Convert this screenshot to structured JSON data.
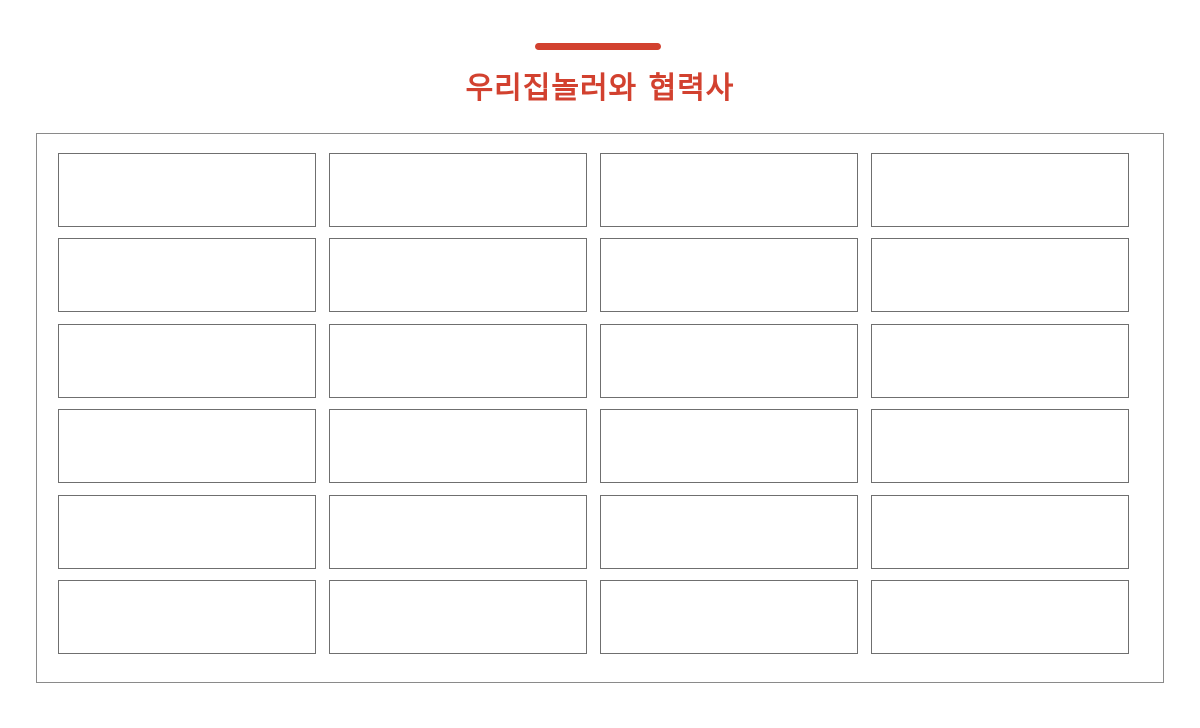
{
  "header": {
    "title": "우리집놀러와 협력사",
    "accent_color": "#d2412f"
  },
  "partners": {
    "columns": 4,
    "rows": 6,
    "slots": [
      {
        "label": ""
      },
      {
        "label": ""
      },
      {
        "label": ""
      },
      {
        "label": ""
      },
      {
        "label": ""
      },
      {
        "label": ""
      },
      {
        "label": ""
      },
      {
        "label": ""
      },
      {
        "label": ""
      },
      {
        "label": ""
      },
      {
        "label": ""
      },
      {
        "label": ""
      },
      {
        "label": ""
      },
      {
        "label": ""
      },
      {
        "label": ""
      },
      {
        "label": ""
      },
      {
        "label": ""
      },
      {
        "label": ""
      },
      {
        "label": ""
      },
      {
        "label": ""
      },
      {
        "label": ""
      },
      {
        "label": ""
      },
      {
        "label": ""
      },
      {
        "label": ""
      }
    ]
  }
}
